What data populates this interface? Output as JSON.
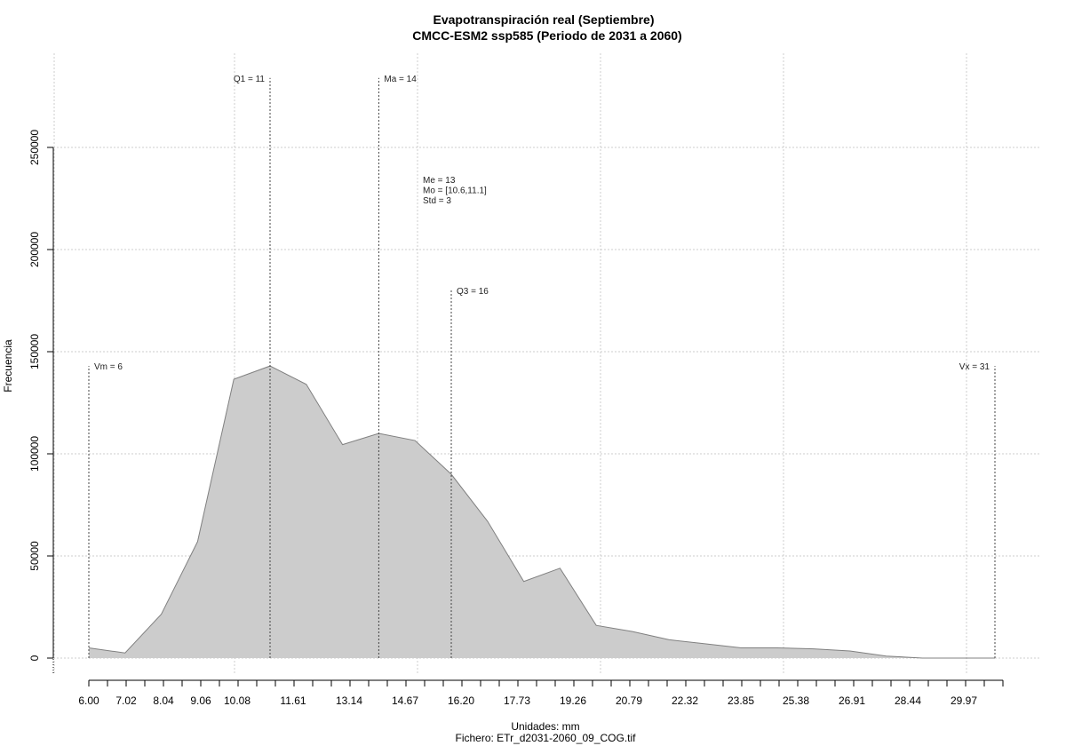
{
  "chart_data": {
    "type": "area",
    "title": "Evapotranspiración real (Septiembre)",
    "subtitle": "CMCC-ESM2 ssp585 (Periodo de 2031 a 2060)",
    "xlabel": "Unidades: mm",
    "caption": "Fichero: ETr_d2031-2060_09_COG.tif",
    "ylabel": "Frecuencia",
    "x": [
      6.0,
      7.02,
      8.04,
      9.06,
      10.08,
      11.1,
      12.12,
      13.14,
      14.16,
      15.18,
      16.2,
      17.22,
      18.24,
      19.26,
      20.28,
      21.3,
      22.32,
      23.34,
      24.36,
      25.38,
      26.4,
      27.42,
      28.44,
      29.46,
      30.48,
      31.5
    ],
    "values": [
      5000,
      2500,
      21500,
      57000,
      136500,
      143000,
      134000,
      104500,
      110000,
      106500,
      90000,
      67000,
      37500,
      44000,
      16000,
      13000,
      9000,
      7000,
      5000,
      5000,
      4500,
      3500,
      1000,
      0,
      0,
      0
    ],
    "xlim": [
      6.0,
      31.5
    ],
    "ylim": [
      0,
      270000
    ],
    "x_tick_labels": [
      "6.00",
      "7.02",
      "8.04",
      "9.06",
      "10.08",
      "11.61",
      "13.14",
      "14.67",
      "16.20",
      "17.73",
      "19.26",
      "20.79",
      "22.32",
      "23.85",
      "25.38",
      "26.91",
      "28.44",
      "29.97"
    ],
    "y_ticks": [
      0,
      50000,
      100000,
      150000,
      200000,
      250000
    ],
    "grid": true,
    "fill_color": "#cccccc",
    "line_color": "#808080",
    "vertical_markers": [
      {
        "label": "Vm = 6",
        "x": 6.0,
        "height": 143000,
        "label_side": "right"
      },
      {
        "label": "Q1 = 11",
        "x": 11.1,
        "height": 284000,
        "label_side": "left"
      },
      {
        "label": "Ma = 14",
        "x": 14.16,
        "height": 284000,
        "label_side": "right"
      },
      {
        "label": "Q3 = 16",
        "x": 16.2,
        "height": 180000,
        "label_side": "right"
      },
      {
        "label": "Vx = 31",
        "x": 31.5,
        "height": 143000,
        "label_side": "left"
      }
    ],
    "stats_block": {
      "x": 15.4,
      "lines": [
        "Me = 13",
        "Mo = [10.6,11.1]",
        "Std = 3"
      ]
    }
  }
}
